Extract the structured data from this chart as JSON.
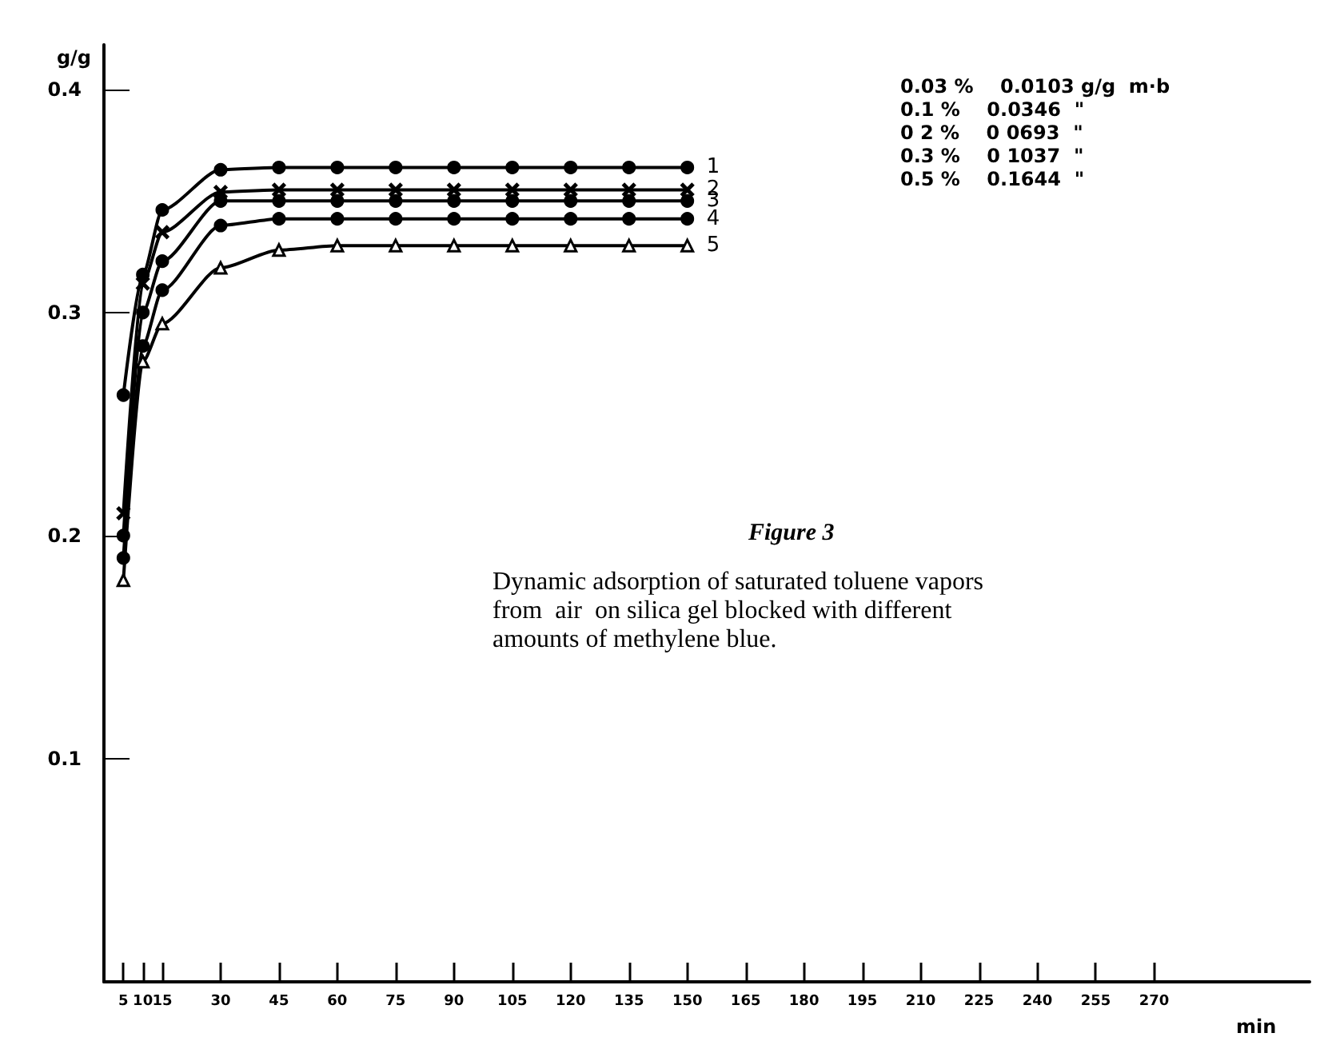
{
  "chart_data": {
    "type": "line",
    "title": "Figure 3",
    "annotations": [
      "Dynamic adsorption of saturated toluene vapors  from  air  on silica gel blocked with different  amounts of methylene blue.",
      "0.03 %    0.0103 g/g  m·b",
      "0.1 %    0.0346  \"",
      "0 2 %    0 0693  \"",
      "0.3 %    0 1037  \"",
      "0.5 %    0.1644  \""
    ],
    "xlabel": "min",
    "ylabel": "g/g",
    "x": [
      5,
      10,
      15,
      30,
      45,
      60,
      75,
      90,
      105,
      120,
      135,
      150
    ],
    "series": [
      {
        "name": "1",
        "color": "#000000",
        "marker": "circle",
        "values": [
          0.263,
          0.317,
          0.346,
          0.364,
          0.365,
          0.365,
          0.365,
          0.365,
          0.365,
          0.365,
          0.365,
          0.365
        ]
      },
      {
        "name": "2",
        "color": "#000000",
        "marker": "cross",
        "values": [
          0.21,
          0.313,
          0.336,
          0.354,
          0.355,
          0.355,
          0.355,
          0.355,
          0.355,
          0.355,
          0.355,
          0.355
        ]
      },
      {
        "name": "3",
        "color": "#000000",
        "marker": "circle",
        "values": [
          0.2,
          0.3,
          0.323,
          0.35,
          0.35,
          0.35,
          0.35,
          0.35,
          0.35,
          0.35,
          0.35,
          0.35
        ]
      },
      {
        "name": "4",
        "color": "#000000",
        "marker": "circle",
        "values": [
          0.19,
          0.285,
          0.31,
          0.339,
          0.342,
          0.342,
          0.342,
          0.342,
          0.342,
          0.342,
          0.342,
          0.342
        ]
      },
      {
        "name": "5",
        "color": "#000000",
        "marker": "triangle",
        "values": [
          0.18,
          0.278,
          0.295,
          0.32,
          0.328,
          0.33,
          0.33,
          0.33,
          0.33,
          0.33,
          0.33,
          0.33
        ]
      }
    ],
    "xlim": [
      0,
      310
    ],
    "xticks": [
      5,
      10,
      15,
      30,
      45,
      60,
      75,
      90,
      105,
      120,
      135,
      150,
      165,
      180,
      195,
      210,
      225,
      240,
      255,
      270
    ],
    "ylim": [
      0,
      0.42
    ],
    "yticks": [
      0.1,
      0.2,
      0.3,
      0.4
    ],
    "grid": false,
    "legend": false
  }
}
